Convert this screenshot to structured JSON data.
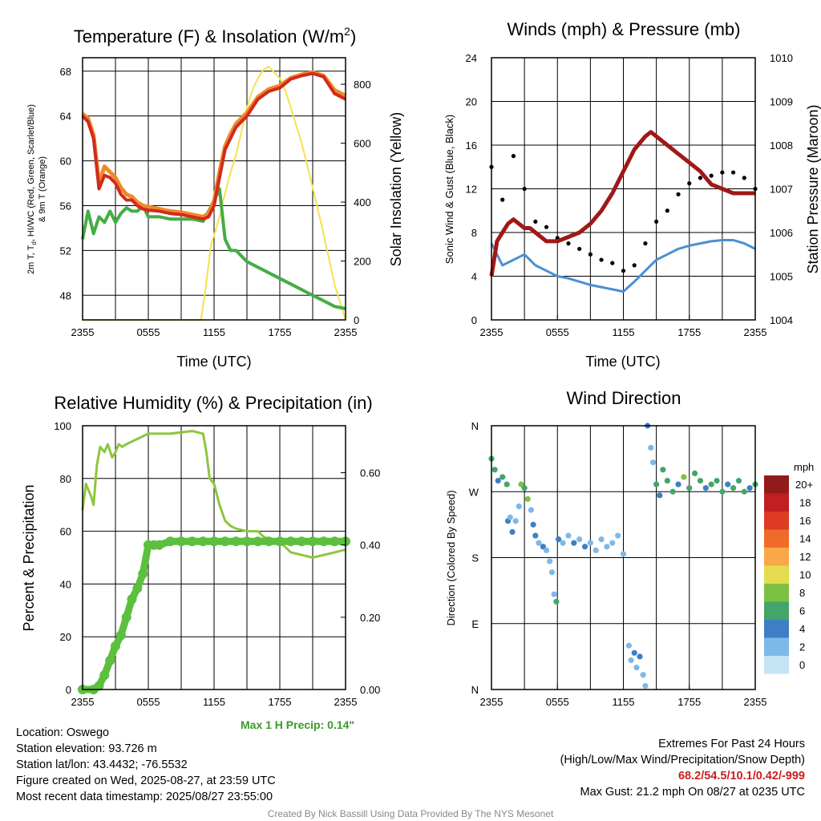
{
  "colors": {
    "temp_red": "#d22a1e",
    "temp_orange": "#f08a28",
    "temp_scarlet": "#e0442a",
    "dew_green": "#44ad44",
    "insolation": "#f5e14f",
    "wind_blue": "#4a90d0",
    "gust_black": "#000000",
    "pressure_maroon": "#a01818",
    "rh_green": "#8dc63f",
    "precip_green": "#5cbf3e"
  },
  "chart_data": [
    {
      "type": "line",
      "title": "Temperature (F) & Insolation (W/m",
      "title_sup": "2",
      "title_end": ")",
      "xlabel": "Time (UTC)",
      "ylabel_line1": "2m T, T",
      "ylabel_sub": "d",
      "ylabel_line1_end": ", HI/WC (Red, Green, Scarlet/Blue)",
      "ylabel_line2": "& 9m T (Orange)",
      "y2label": "Solar Insolation (Yellow)",
      "x_ticks": [
        "2355",
        "0555",
        "1155",
        "1755",
        "2355"
      ],
      "y_ticks": [
        "48",
        "52",
        "56",
        "60",
        "64",
        "68"
      ],
      "y2_ticks": [
        "0",
        "200",
        "400",
        "600",
        "800"
      ],
      "ylim": [
        45.8,
        69.2
      ],
      "y2lim": [
        0,
        890
      ],
      "x_hours": [
        0,
        24
      ],
      "series": [
        {
          "key": "temp",
          "x": [
            0,
            0.5,
            1,
            1.5,
            2,
            2.5,
            3,
            3.5,
            4,
            4.5,
            5,
            5.5,
            6,
            7,
            8,
            9,
            10,
            11,
            11.5,
            12,
            12.5,
            13,
            13.5,
            14,
            15,
            16,
            17,
            18,
            19,
            20,
            21,
            22,
            23,
            24
          ],
          "y": [
            64,
            63.5,
            62,
            57.5,
            58.7,
            58.5,
            58,
            57,
            56.5,
            56.5,
            56,
            55.7,
            55.6,
            55.5,
            55.3,
            55.2,
            55,
            54.8,
            55,
            56,
            58.5,
            61,
            62,
            63,
            64,
            65.5,
            66.2,
            66.5,
            67.3,
            67.6,
            67.8,
            67.5,
            66,
            65.5
          ]
        },
        {
          "key": "temp9m",
          "x": [
            0,
            0.5,
            1,
            1.5,
            2,
            2.5,
            3,
            3.5,
            4,
            4.5,
            5,
            5.5,
            6,
            7,
            8,
            9,
            10,
            11,
            11.5,
            12,
            12.5,
            13,
            13.5,
            14,
            15,
            16,
            17,
            18,
            19,
            20,
            21,
            22,
            23,
            24
          ],
          "y": [
            64.2,
            63.8,
            62.3,
            58,
            59.5,
            59,
            58.5,
            57.6,
            57,
            56.8,
            56.3,
            56,
            55.9,
            55.7,
            55.5,
            55.4,
            55.2,
            55,
            55.3,
            56.4,
            59,
            61.3,
            62.4,
            63.3,
            64.3,
            65.7,
            66.4,
            66.7,
            67.4,
            67.7,
            67.9,
            67.6,
            66.3,
            65.8
          ]
        },
        {
          "key": "dew",
          "x": [
            0,
            0.5,
            1,
            1.5,
            2,
            2.5,
            3,
            3.5,
            4,
            4.5,
            5,
            5.5,
            6,
            7,
            8,
            9,
            10,
            11,
            11.5,
            12,
            12.5,
            13,
            13.5,
            14,
            15,
            16,
            17,
            18,
            19,
            20,
            21,
            22,
            23,
            24
          ],
          "y": [
            53,
            55.5,
            53.5,
            55,
            54.5,
            55.5,
            54.5,
            55.3,
            55.8,
            55.5,
            55.5,
            56,
            55,
            55,
            54.8,
            54.8,
            54.8,
            54.6,
            55.5,
            56.5,
            57.5,
            53,
            52,
            52,
            51,
            50.5,
            50,
            49.5,
            49,
            48.5,
            48,
            47.5,
            47,
            46.8
          ]
        },
        {
          "key": "solar",
          "x": [
            0,
            10.8,
            11.2,
            11.7,
            12.5,
            13,
            13.5,
            14,
            14.5,
            15,
            15.5,
            16,
            16.5,
            17,
            17.5,
            18,
            18.5,
            19,
            20,
            21,
            22,
            23,
            24
          ],
          "y": [
            0,
            0,
            100,
            250,
            350,
            430,
            500,
            560,
            640,
            720,
            780,
            820,
            850,
            860,
            840,
            820,
            780,
            720,
            600,
            450,
            290,
            120,
            0
          ]
        }
      ]
    },
    {
      "type": "line",
      "title": "Winds (mph) & Pressure (mb)",
      "xlabel": "Time (UTC)",
      "ylabel": "Sonic Wind & Gust (Blue, Black)",
      "y2label": "Station Pressure (Maroon)",
      "x_ticks": [
        "2355",
        "0555",
        "1155",
        "1755",
        "2355"
      ],
      "y_ticks": [
        "0",
        "4",
        "8",
        "12",
        "16",
        "20",
        "24"
      ],
      "y2_ticks": [
        "1004",
        "1005",
        "1006",
        "1007",
        "1008",
        "1009",
        "1010"
      ],
      "ylim": [
        0,
        24
      ],
      "y2lim": [
        1004,
        1010
      ],
      "series": [
        {
          "key": "wind",
          "x": [
            0,
            1,
            2,
            3,
            4,
            5,
            6,
            7,
            8,
            9,
            10,
            11,
            12,
            13,
            14,
            15,
            16,
            17,
            18,
            19,
            20,
            21,
            22,
            23,
            24
          ],
          "y": [
            7,
            5,
            5.5,
            6,
            5,
            4.5,
            4,
            3.8,
            3.5,
            3.2,
            3,
            2.8,
            2.6,
            3.5,
            4.5,
            5.5,
            6,
            6.5,
            6.8,
            7,
            7.2,
            7.3,
            7.3,
            7,
            6.5
          ]
        },
        {
          "key": "gust",
          "x": [
            0,
            1,
            2,
            3,
            4,
            5,
            6,
            7,
            8,
            9,
            10,
            11,
            12,
            13,
            14,
            15,
            16,
            17,
            18,
            19,
            20,
            21,
            22,
            23,
            24
          ],
          "y": [
            14,
            11,
            15,
            12,
            9,
            8.5,
            7.5,
            7,
            6.5,
            6,
            5.5,
            5.2,
            4.5,
            5,
            7,
            9,
            10,
            11.5,
            12.5,
            13,
            13.2,
            13.5,
            13.5,
            13,
            12
          ]
        },
        {
          "key": "pressure",
          "x": [
            0,
            0.5,
            1,
            1.5,
            2,
            2.5,
            3,
            3.5,
            4,
            5,
            6,
            7,
            8,
            9,
            10,
            11,
            12,
            13,
            14,
            14.5,
            15,
            16,
            17,
            18,
            19,
            20,
            21,
            22,
            23,
            24
          ],
          "y": [
            1005,
            1005.8,
            1006,
            1006.2,
            1006.3,
            1006.2,
            1006.1,
            1006.1,
            1006,
            1005.8,
            1005.8,
            1005.9,
            1006,
            1006.2,
            1006.5,
            1006.9,
            1007.4,
            1007.9,
            1008.2,
            1008.3,
            1008.2,
            1008,
            1007.8,
            1007.6,
            1007.4,
            1007.1,
            1007,
            1006.9,
            1006.9,
            1006.9
          ]
        }
      ]
    },
    {
      "type": "line",
      "title": "Relative Humidity (%) & Precipitation (in)",
      "ylabel": "Percent & Precipitation",
      "x_ticks": [
        "2355",
        "0555",
        "1155",
        "1755",
        "2355"
      ],
      "y_ticks": [
        "0",
        "20",
        "40",
        "60",
        "80",
        "100"
      ],
      "y2_ticks": [
        "0.00",
        "0.20",
        "0.40",
        "0.60"
      ],
      "ylim": [
        0,
        100
      ],
      "y2lim": [
        0,
        0.73
      ],
      "series": [
        {
          "key": "rh",
          "x": [
            0,
            0.3,
            0.8,
            1,
            1.3,
            1.6,
            2,
            2.3,
            2.7,
            3,
            3.3,
            3.6,
            4,
            5,
            6,
            7,
            8,
            9,
            10,
            11,
            11.3,
            11.6,
            12,
            12.5,
            13,
            13.5,
            14,
            15,
            16,
            16.5,
            17,
            18,
            19,
            20,
            21,
            22,
            23,
            24
          ],
          "y": [
            68,
            78,
            73,
            70,
            85,
            92,
            90,
            93,
            88,
            90,
            93,
            92,
            93,
            95,
            97,
            97,
            97,
            97.5,
            98,
            97,
            90,
            80,
            78,
            70,
            64,
            62,
            61,
            60,
            60,
            58,
            57,
            56,
            52,
            51,
            50,
            51,
            52,
            53
          ]
        },
        {
          "key": "precip",
          "x": [
            0,
            1,
            1.5,
            2,
            2.5,
            3,
            3.5,
            4,
            4.5,
            5,
            5.5,
            6,
            6.5,
            7,
            8,
            9,
            10,
            11,
            12,
            13,
            14,
            15,
            16,
            17,
            18,
            19,
            20,
            21,
            22,
            23,
            24
          ],
          "y": [
            0,
            0,
            0.01,
            0.04,
            0.08,
            0.12,
            0.15,
            0.2,
            0.25,
            0.28,
            0.32,
            0.4,
            0.4,
            0.4,
            0.41,
            0.41,
            0.41,
            0.41,
            0.41,
            0.41,
            0.41,
            0.41,
            0.41,
            0.41,
            0.41,
            0.41,
            0.41,
            0.41,
            0.41,
            0.41,
            0.41
          ]
        }
      ],
      "max_precip_label": "Max 1 H Precip: 0.14\""
    },
    {
      "type": "scatter",
      "title": "Wind Direction",
      "ylabel": "Direction (Colored By Speed)",
      "x_ticks": [
        "2355",
        "0555",
        "1155",
        "1755",
        "2355"
      ],
      "y_ticks": [
        "N",
        "E",
        "S",
        "W",
        "N"
      ],
      "ylim": [
        0,
        360
      ],
      "colorbar_title": "mph",
      "colorbar_labels": [
        "0",
        "2",
        "4",
        "6",
        "8",
        "10",
        "12",
        "14",
        "16",
        "18",
        "20+"
      ],
      "colorbar_colors": [
        "#c4e4f6",
        "#7cb9e8",
        "#3d7fc4",
        "#44a56a",
        "#7dc142",
        "#e4dc50",
        "#f8a848",
        "#f06a2a",
        "#de3a24",
        "#c02020",
        "#921a1a"
      ],
      "points": [
        {
          "x": 0,
          "y": 315,
          "s": 6
        },
        {
          "x": 0.3,
          "y": 300,
          "s": 6
        },
        {
          "x": 0.6,
          "y": 285,
          "s": 5
        },
        {
          "x": 1,
          "y": 290,
          "s": 7
        },
        {
          "x": 1.4,
          "y": 280,
          "s": 6
        },
        {
          "x": 1.5,
          "y": 230,
          "s": 4
        },
        {
          "x": 1.7,
          "y": 235,
          "s": 3
        },
        {
          "x": 1.9,
          "y": 215,
          "s": 4
        },
        {
          "x": 2.2,
          "y": 230,
          "s": 3
        },
        {
          "x": 2.5,
          "y": 250,
          "s": 2
        },
        {
          "x": 2.7,
          "y": 280,
          "s": 8
        },
        {
          "x": 3,
          "y": 275,
          "s": 7
        },
        {
          "x": 3.3,
          "y": 260,
          "s": 8
        },
        {
          "x": 3.6,
          "y": 245,
          "s": 3
        },
        {
          "x": 3.8,
          "y": 225,
          "s": 4
        },
        {
          "x": 4,
          "y": 210,
          "s": 4
        },
        {
          "x": 4.3,
          "y": 200,
          "s": 3
        },
        {
          "x": 4.7,
          "y": 195,
          "s": 4
        },
        {
          "x": 5,
          "y": 190,
          "s": 2
        },
        {
          "x": 5.3,
          "y": 175,
          "s": 2
        },
        {
          "x": 5.5,
          "y": 160,
          "s": 3
        },
        {
          "x": 5.7,
          "y": 130,
          "s": 2
        },
        {
          "x": 5.9,
          "y": 120,
          "s": 6
        },
        {
          "x": 6.1,
          "y": 205,
          "s": 4
        },
        {
          "x": 6.5,
          "y": 200,
          "s": 3
        },
        {
          "x": 7,
          "y": 210,
          "s": 3
        },
        {
          "x": 7.5,
          "y": 200,
          "s": 4
        },
        {
          "x": 8,
          "y": 205,
          "s": 3
        },
        {
          "x": 8.5,
          "y": 195,
          "s": 4
        },
        {
          "x": 9,
          "y": 200,
          "s": 2
        },
        {
          "x": 9.5,
          "y": 190,
          "s": 2
        },
        {
          "x": 10,
          "y": 205,
          "s": 3
        },
        {
          "x": 10.5,
          "y": 195,
          "s": 2
        },
        {
          "x": 11,
          "y": 200,
          "s": 3
        },
        {
          "x": 11.5,
          "y": 210,
          "s": 2
        },
        {
          "x": 12,
          "y": 185,
          "s": 2
        },
        {
          "x": 12.5,
          "y": 60,
          "s": 3
        },
        {
          "x": 12.7,
          "y": 40,
          "s": 2
        },
        {
          "x": 13,
          "y": 50,
          "s": 4
        },
        {
          "x": 13.2,
          "y": 30,
          "s": 3
        },
        {
          "x": 13.5,
          "y": 45,
          "s": 4
        },
        {
          "x": 13.8,
          "y": 20,
          "s": 2
        },
        {
          "x": 14,
          "y": 5,
          "s": 3
        },
        {
          "x": 14.2,
          "y": 360,
          "s": 4
        },
        {
          "x": 14.5,
          "y": 330,
          "s": 2
        },
        {
          "x": 14.7,
          "y": 310,
          "s": 3
        },
        {
          "x": 15,
          "y": 280,
          "s": 6
        },
        {
          "x": 15.3,
          "y": 265,
          "s": 5
        },
        {
          "x": 15.6,
          "y": 300,
          "s": 6
        },
        {
          "x": 16,
          "y": 285,
          "s": 7
        },
        {
          "x": 16.5,
          "y": 270,
          "s": 6
        },
        {
          "x": 17,
          "y": 280,
          "s": 5
        },
        {
          "x": 17.5,
          "y": 290,
          "s": 8
        },
        {
          "x": 18,
          "y": 275,
          "s": 6
        },
        {
          "x": 18.5,
          "y": 295,
          "s": 7
        },
        {
          "x": 19,
          "y": 285,
          "s": 6
        },
        {
          "x": 19.5,
          "y": 275,
          "s": 5
        },
        {
          "x": 20,
          "y": 280,
          "s": 6
        },
        {
          "x": 20.5,
          "y": 285,
          "s": 7
        },
        {
          "x": 21,
          "y": 270,
          "s": 6
        },
        {
          "x": 21.5,
          "y": 280,
          "s": 5
        },
        {
          "x": 22,
          "y": 275,
          "s": 6
        },
        {
          "x": 22.5,
          "y": 285,
          "s": 7
        },
        {
          "x": 23,
          "y": 270,
          "s": 6
        },
        {
          "x": 23.5,
          "y": 275,
          "s": 5
        },
        {
          "x": 24,
          "y": 280,
          "s": 6
        }
      ]
    }
  ],
  "footer": {
    "location": "Location: Oswego",
    "elevation": "Station elevation: 93.726 m",
    "latlon": "Station lat/lon: 43.4432; -76.5532",
    "created": "Figure created on Wed, 2025-08-27, at 23:59 UTC",
    "recent": "Most recent data timestamp: 2025/08/27 23:55:00",
    "extremes_title": "Extremes For Past 24 Hours",
    "extremes_sub": "(High/Low/Max Wind/Precipitation/Snow Depth)",
    "extremes_values": "68.2/54.5/10.1/0.42/-999",
    "max_gust": "Max Gust: 21.2 mph On 08/27 at 0235 UTC",
    "credit": "Created By Nick Bassill Using Data Provided By The NYS Mesonet"
  }
}
